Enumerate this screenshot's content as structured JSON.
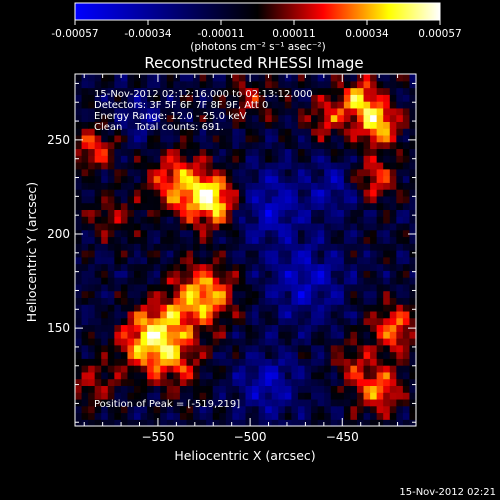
{
  "colorbar": {
    "ticks": [
      "-0.00057",
      "-0.00034",
      "-0.00011",
      "0.00011",
      "0.00034",
      "0.00057"
    ],
    "unit_label": "(photons cm⁻² s⁻¹ asec⁻²)",
    "colors": [
      "#0000ff",
      "#000000",
      "#ff0000",
      "#ffff00",
      "#ffffff"
    ]
  },
  "title": "Reconstructed RHESSI Image",
  "annotations": [
    "15-Nov-2012 02:12:16.000 to 02:13:12.000",
    "Detectors: 3F 5F 6F 7F 8F 9F, Att 0",
    "Energy Range: 12.0 - 25.0 keV",
    "Clean    Total counts: 691."
  ],
  "peak_label": "Position of Peak = [-519,219]",
  "footer_timestamp": "15-Nov-2012 02:21",
  "chart_data": {
    "type": "heatmap",
    "title": "Reconstructed RHESSI Image",
    "xlabel": "Heliocentric X (arcsec)",
    "ylabel": "Heliocentric Y (arcsec)",
    "xlim": [
      -595,
      -410
    ],
    "ylim": [
      98,
      285
    ],
    "x_ticks": [
      -550,
      -500,
      -450
    ],
    "x_tick_labels": [
      "−550",
      "−500",
      "−450"
    ],
    "y_ticks": [
      150,
      200,
      250
    ],
    "y_tick_labels": [
      "150",
      "200",
      "250"
    ],
    "colorbar_range": [
      -0.00057,
      0.00057
    ],
    "peak_position": [
      -519,
      219
    ],
    "grid_size": [
      52,
      52
    ],
    "blobs": [
      {
        "x": -520,
        "y": 218,
        "amp": 0.00057,
        "sigma": 10
      },
      {
        "x": -540,
        "y": 228,
        "amp": 0.0004,
        "sigma": 11
      },
      {
        "x": -525,
        "y": 168,
        "amp": 0.00046,
        "sigma": 12
      },
      {
        "x": -548,
        "y": 150,
        "amp": 0.00042,
        "sigma": 11
      },
      {
        "x": -560,
        "y": 140,
        "amp": 0.0003,
        "sigma": 10
      },
      {
        "x": -540,
        "y": 130,
        "amp": 0.00026,
        "sigma": 10
      },
      {
        "x": -430,
        "y": 258,
        "amp": 0.0005,
        "sigma": 8
      },
      {
        "x": -440,
        "y": 272,
        "amp": 0.00042,
        "sigma": 8
      },
      {
        "x": -458,
        "y": 262,
        "amp": 0.00028,
        "sigma": 8
      },
      {
        "x": -432,
        "y": 230,
        "amp": 0.00034,
        "sigma": 8
      },
      {
        "x": -422,
        "y": 150,
        "amp": 0.0004,
        "sigma": 9
      },
      {
        "x": -430,
        "y": 118,
        "amp": 0.0004,
        "sigma": 9
      },
      {
        "x": -445,
        "y": 132,
        "amp": 0.0002,
        "sigma": 8
      },
      {
        "x": -585,
        "y": 246,
        "amp": 0.00035,
        "sigma": 8
      },
      {
        "x": -575,
        "y": 210,
        "amp": 0.00022,
        "sigma": 9
      },
      {
        "x": -500,
        "y": 272,
        "amp": 0.00022,
        "sigma": 9
      },
      {
        "x": -585,
        "y": 120,
        "amp": 0.00025,
        "sigma": 9
      },
      {
        "x": -490,
        "y": 215,
        "amp": -0.0003,
        "sigma": 14
      },
      {
        "x": -470,
        "y": 175,
        "amp": -0.0003,
        "sigma": 14
      },
      {
        "x": -490,
        "y": 120,
        "amp": -0.00028,
        "sigma": 12
      },
      {
        "x": -560,
        "y": 262,
        "amp": -0.00018,
        "sigma": 9
      },
      {
        "x": -455,
        "y": 225,
        "amp": -0.00022,
        "sigma": 10
      }
    ]
  }
}
